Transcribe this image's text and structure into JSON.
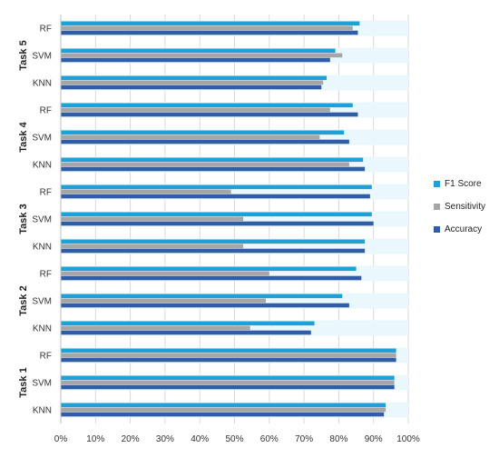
{
  "chart_data": {
    "type": "bar",
    "orientation": "horizontal",
    "tasks": [
      "Task 1",
      "Task 2",
      "Task 3",
      "Task 4",
      "Task 5"
    ],
    "methods": [
      "KNN",
      "SVM",
      "RF"
    ],
    "x_ticks": [
      "0%",
      "10%",
      "20%",
      "30%",
      "40%",
      "50%",
      "60%",
      "70%",
      "80%",
      "90%",
      "100%"
    ],
    "xlim": [
      0,
      100
    ],
    "grid": true,
    "legend_position": "right",
    "series": [
      {
        "name": "F1 Score",
        "color": "#1fa0d6",
        "values": {
          "Task 1": {
            "KNN": 93.5,
            "SVM": 96,
            "RF": 96.5
          },
          "Task 2": {
            "KNN": 73,
            "SVM": 81,
            "RF": 85
          },
          "Task 3": {
            "KNN": 87.5,
            "SVM": 89.5,
            "RF": 89.5
          },
          "Task 4": {
            "KNN": 87,
            "SVM": 81.5,
            "RF": 84
          },
          "Task 5": {
            "KNN": 76.5,
            "SVM": 79,
            "RF": 86
          }
        }
      },
      {
        "name": "Sensitivity",
        "color": "#a6a6a6",
        "values": {
          "Task 1": {
            "KNN": 93.5,
            "SVM": 96,
            "RF": 96.5
          },
          "Task 2": {
            "KNN": 54.5,
            "SVM": 59,
            "RF": 60
          },
          "Task 3": {
            "KNN": 52.5,
            "SVM": 52.5,
            "RF": 49
          },
          "Task 4": {
            "KNN": 83,
            "SVM": 74.5,
            "RF": 77.5
          },
          "Task 5": {
            "KNN": 75.5,
            "SVM": 81,
            "RF": 84
          }
        }
      },
      {
        "name": "Accuracy",
        "color": "#2f5ea6",
        "values": {
          "Task 1": {
            "KNN": 93,
            "SVM": 96,
            "RF": 96.5
          },
          "Task 2": {
            "KNN": 72,
            "SVM": 83,
            "RF": 86.5
          },
          "Task 3": {
            "KNN": 87.5,
            "SVM": 90,
            "RF": 89
          },
          "Task 4": {
            "KNN": 87.5,
            "SVM": 83,
            "RF": 85.5
          },
          "Task 5": {
            "KNN": 75,
            "SVM": 77.5,
            "RF": 85.5
          }
        }
      }
    ]
  }
}
